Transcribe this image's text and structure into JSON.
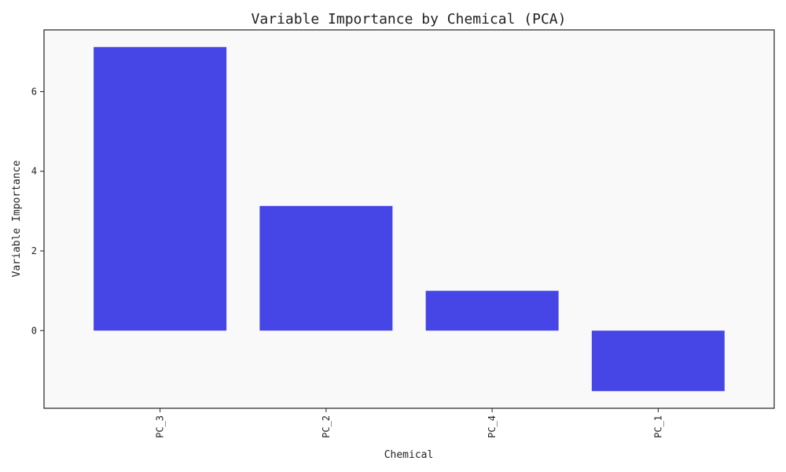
{
  "chart_data": {
    "type": "bar",
    "title": "Variable Importance by Chemical (PCA)",
    "xlabel": "Chemical",
    "ylabel": "Variable Importance",
    "categories": [
      "PC_3",
      "PC_2",
      "PC_4",
      "PC_1"
    ],
    "values": [
      7.12,
      3.13,
      1.0,
      -1.52
    ],
    "ylim": [
      -1.95,
      7.55
    ],
    "yticks": [
      0,
      2,
      4,
      6
    ],
    "x_tick_rotation": "vertical",
    "grid": false,
    "legend": "none",
    "colors": {
      "bar": "#4646e6",
      "plot_background": "#f9f9f9",
      "axes": "#222222"
    }
  }
}
